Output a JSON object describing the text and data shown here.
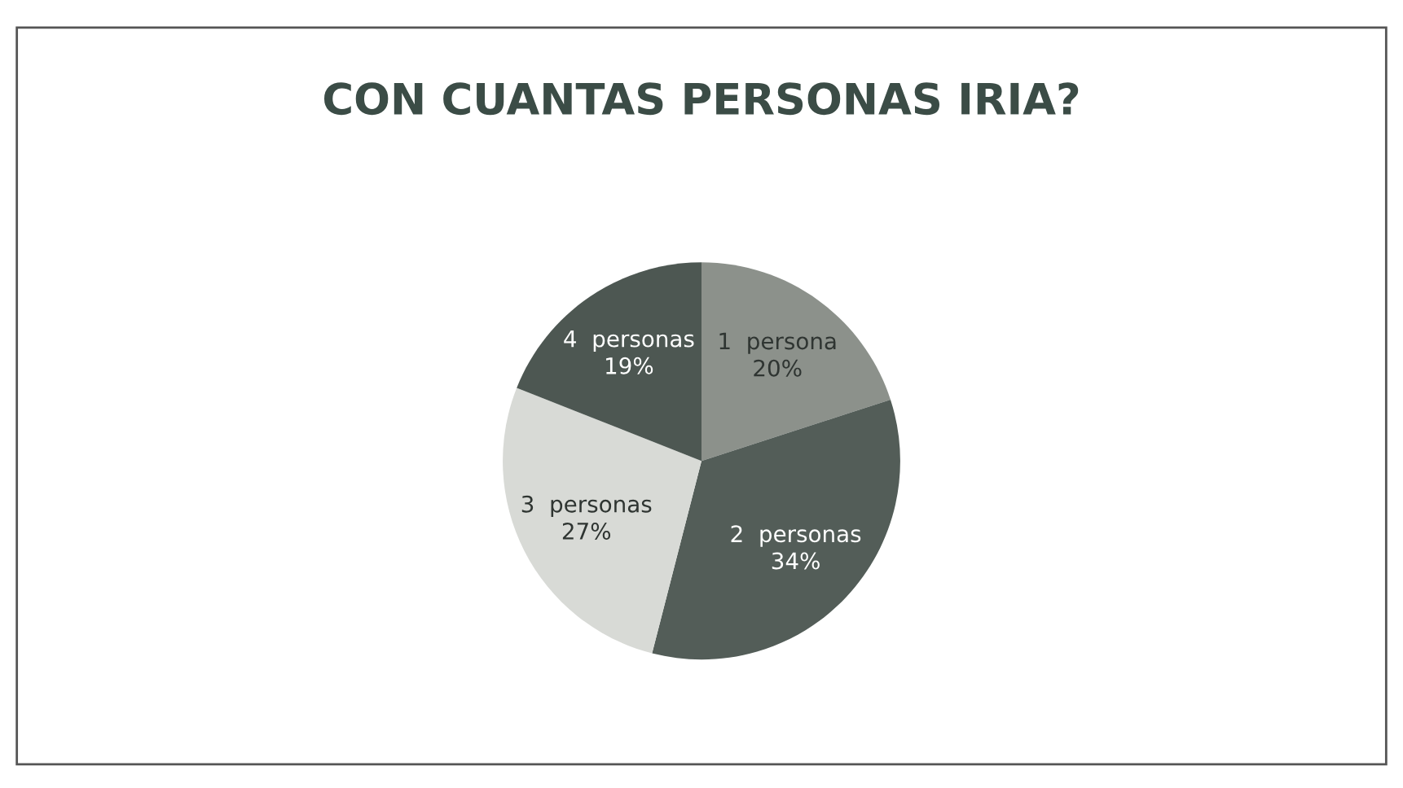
{
  "chart_data": {
    "type": "pie",
    "title": "CON CUANTAS PERSONAS IRIA?",
    "categories": [
      "1  persona",
      "2  personas",
      "3  personas",
      "4  personas"
    ],
    "values": [
      20,
      34,
      27,
      19
    ],
    "value_labels": [
      "20%",
      "34%",
      "27%",
      "19%"
    ],
    "colors": [
      "#8c918b",
      "#535d58",
      "#d8dad6",
      "#4d5752"
    ]
  }
}
